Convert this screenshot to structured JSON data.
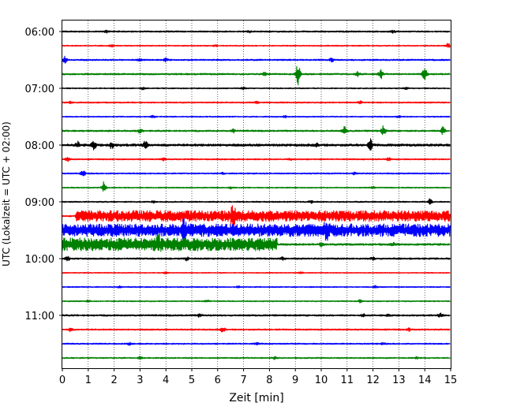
{
  "chart_data": {
    "type": "line",
    "title": "",
    "xlabel": "Zeit  [min]",
    "ylabel": "UTC (Lokalzeit = UTC + 02:00)",
    "xlim": [
      0,
      15
    ],
    "x_ticks": [
      "0",
      "1",
      "2",
      "3",
      "4",
      "5",
      "6",
      "7",
      "8",
      "9",
      "10",
      "11",
      "12",
      "13",
      "14",
      "15"
    ],
    "y_tick_labels": [
      "06:00",
      "07:00",
      "08:00",
      "09:00",
      "10:00",
      "11:00"
    ],
    "grid": "vertical dotted",
    "row_minutes": 15,
    "series_colors": [
      "#000000",
      "#ff0000",
      "#0000ff",
      "#008000"
    ],
    "traces": [
      {
        "start": "06:00",
        "color": "#000000",
        "noise": 0.9,
        "events": [
          [
            1.7,
            1.2
          ],
          [
            7.2,
            1.4
          ],
          [
            12.8,
            1.8
          ]
        ],
        "bands": []
      },
      {
        "start": "06:15",
        "color": "#ff0000",
        "noise": 0.7,
        "events": [
          [
            1.9,
            1.3
          ],
          [
            5.9,
            1.0
          ],
          [
            14.9,
            3.5
          ]
        ],
        "bands": []
      },
      {
        "start": "06:30",
        "color": "#0000ff",
        "noise": 0.9,
        "events": [
          [
            0.1,
            4.0
          ],
          [
            3.0,
            1.3
          ],
          [
            4.0,
            2.0
          ],
          [
            10.4,
            2.2
          ]
        ],
        "bands": []
      },
      {
        "start": "06:45",
        "color": "#008000",
        "noise": 1.0,
        "events": [
          [
            7.8,
            2.0
          ],
          [
            9.1,
            15.0
          ],
          [
            11.4,
            3.0
          ],
          [
            12.3,
            5.5
          ],
          [
            14.0,
            10.0
          ]
        ],
        "bands": []
      },
      {
        "start": "07:00",
        "color": "#000000",
        "noise": 0.7,
        "events": [
          [
            3.1,
            1.2
          ],
          [
            7.0,
            1.4
          ],
          [
            13.3,
            1.4
          ]
        ],
        "bands": []
      },
      {
        "start": "07:15",
        "color": "#ff0000",
        "noise": 0.8,
        "events": [
          [
            0.3,
            1.5
          ],
          [
            7.5,
            1.2
          ],
          [
            11.5,
            1.6
          ]
        ],
        "bands": []
      },
      {
        "start": "07:30",
        "color": "#0000ff",
        "noise": 0.7,
        "events": [
          [
            3.5,
            1.4
          ],
          [
            8.6,
            1.2
          ],
          [
            13.0,
            1.2
          ]
        ],
        "bands": []
      },
      {
        "start": "07:45",
        "color": "#008000",
        "noise": 1.0,
        "events": [
          [
            3.0,
            2.6
          ],
          [
            6.6,
            2.0
          ],
          [
            10.9,
            5.0
          ],
          [
            12.4,
            6.5
          ],
          [
            14.7,
            6.0
          ]
        ],
        "bands": []
      },
      {
        "start": "08:00",
        "color": "#000000",
        "noise": 1.5,
        "events": [
          [
            0.6,
            3.5
          ],
          [
            1.2,
            8.0
          ],
          [
            1.9,
            4.0
          ],
          [
            3.2,
            5.0
          ],
          [
            9.8,
            2.0
          ],
          [
            11.9,
            7.0
          ]
        ],
        "bands": []
      },
      {
        "start": "08:15",
        "color": "#ff0000",
        "noise": 0.8,
        "events": [
          [
            0.2,
            3.0
          ],
          [
            3.9,
            1.5
          ],
          [
            8.8,
            1.2
          ],
          [
            12.6,
            1.8
          ]
        ],
        "bands": []
      },
      {
        "start": "08:30",
        "color": "#0000ff",
        "noise": 0.8,
        "events": [
          [
            0.8,
            4.0
          ],
          [
            6.2,
            1.2
          ],
          [
            11.3,
            1.3
          ]
        ],
        "bands": []
      },
      {
        "start": "08:45",
        "color": "#008000",
        "noise": 0.7,
        "events": [
          [
            1.6,
            7.5
          ],
          [
            6.5,
            1.2
          ],
          [
            12.0,
            1.4
          ]
        ],
        "bands": []
      },
      {
        "start": "09:00",
        "color": "#000000",
        "noise": 0.8,
        "events": [
          [
            3.5,
            1.3
          ],
          [
            9.6,
            1.4
          ],
          [
            14.2,
            4.0
          ]
        ],
        "bands": []
      },
      {
        "start": "09:15",
        "color": "#ff0000",
        "noise": 1.0,
        "events": [
          [
            6.6,
            11.0
          ]
        ],
        "bands": [
          [
            0.5,
            15.0,
            6.0
          ]
        ]
      },
      {
        "start": "09:30",
        "color": "#0000ff",
        "noise": 1.0,
        "events": [
          [
            4.7,
            9.0
          ],
          [
            10.2,
            8.5
          ]
        ],
        "bands": [
          [
            0.0,
            15.0,
            7.0
          ]
        ]
      },
      {
        "start": "09:45",
        "color": "#008000",
        "noise": 1.2,
        "events": [
          [
            3.7,
            5.0
          ],
          [
            10.0,
            2.0
          ],
          [
            12.8,
            1.6
          ]
        ],
        "bands": [
          [
            0.0,
            8.3,
            7.0
          ]
        ]
      },
      {
        "start": "10:00",
        "color": "#000000",
        "noise": 1.0,
        "events": [
          [
            0.2,
            2.5
          ],
          [
            4.8,
            2.0
          ],
          [
            8.5,
            1.8
          ],
          [
            12.0,
            1.5
          ]
        ],
        "bands": []
      },
      {
        "start": "10:15",
        "color": "#ff0000",
        "noise": 0.6,
        "events": [
          [
            4.0,
            1.2
          ],
          [
            9.2,
            1.2
          ]
        ],
        "bands": []
      },
      {
        "start": "10:30",
        "color": "#0000ff",
        "noise": 0.7,
        "events": [
          [
            2.2,
            1.3
          ],
          [
            6.8,
            1.3
          ],
          [
            12.1,
            1.3
          ]
        ],
        "bands": []
      },
      {
        "start": "10:45",
        "color": "#008000",
        "noise": 0.7,
        "events": [
          [
            1.0,
            1.2
          ],
          [
            5.6,
            1.2
          ],
          [
            11.5,
            1.8
          ]
        ],
        "bands": []
      },
      {
        "start": "11:00",
        "color": "#000000",
        "noise": 1.0,
        "events": [
          [
            5.3,
            2.0
          ],
          [
            11.6,
            2.4
          ],
          [
            12.6,
            2.0
          ],
          [
            14.6,
            2.6
          ]
        ],
        "bands": []
      },
      {
        "start": "11:15",
        "color": "#ff0000",
        "noise": 0.9,
        "events": [
          [
            0.3,
            2.0
          ],
          [
            6.2,
            3.5
          ],
          [
            13.4,
            1.6
          ]
        ],
        "bands": []
      },
      {
        "start": "11:30",
        "color": "#0000ff",
        "noise": 0.8,
        "events": [
          [
            2.6,
            1.4
          ],
          [
            7.5,
            1.4
          ],
          [
            12.4,
            1.4
          ]
        ],
        "bands": []
      },
      {
        "start": "11:45",
        "color": "#008000",
        "noise": 0.8,
        "events": [
          [
            3.0,
            1.4
          ],
          [
            8.2,
            1.4
          ],
          [
            13.7,
            1.4
          ]
        ],
        "bands": []
      }
    ]
  }
}
